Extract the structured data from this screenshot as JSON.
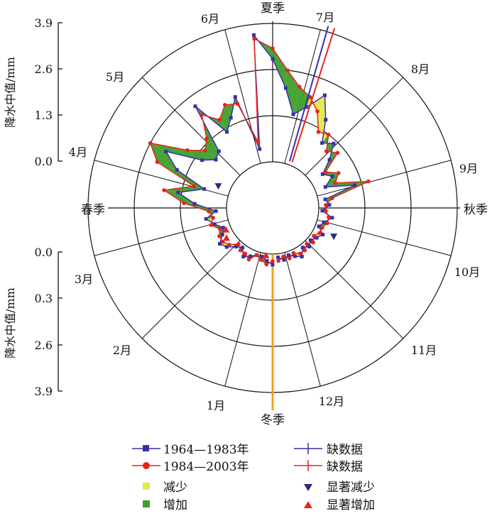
{
  "chart_data": {
    "type": "radar",
    "seasons": [
      "夏季",
      "秋季",
      "冬季",
      "春季"
    ],
    "months": [
      "1月",
      "2月",
      "3月",
      "4月",
      "5月",
      "6月",
      "7月",
      "8月",
      "9月",
      "10月",
      "11月",
      "12月"
    ],
    "y_axis_label": "降水中值/mm",
    "upper_ticks": [
      "3.9",
      "2.6",
      "1.3",
      "0.0"
    ],
    "lower_ticks": [
      "0.0",
      "0.3",
      "2.6",
      "3.9"
    ],
    "rlim": [
      0,
      3.9
    ],
    "series": [
      {
        "name": "1964—1983年",
        "color": "#3b2fa8",
        "values": [
          0.3,
          0.2,
          0.1,
          0.1,
          0.2,
          0.3,
          0.1,
          0.2,
          0.4,
          0.5,
          0.3,
          0.2,
          0.4,
          0.6,
          0.3,
          0.9,
          1.4,
          0.7,
          1.6,
          2.1,
          1.1,
          0.8,
          0.9,
          2.3,
          1.2,
          1.5,
          2.0,
          0.4,
          3.6,
          2.9,
          2.1,
          1.4,
          1.7,
          2.2,
          1.6,
          1.0,
          1.2,
          0.8,
          0.4,
          0.6,
          0.3,
          1.1,
          0.2,
          0.3,
          0.1,
          0.4,
          0.2,
          0.1,
          0.3,
          0.2,
          0.1,
          0.2,
          0.1,
          0.3,
          0.2,
          0.1,
          0.2,
          0.1
        ]
      },
      {
        "name": "1984—2003年",
        "color": "#e8241c",
        "values": [
          0.2,
          0.3,
          0.2,
          0.1,
          0.3,
          0.2,
          0.2,
          0.1,
          0.3,
          0.4,
          0.4,
          0.3,
          0.5,
          0.4,
          0.5,
          1.2,
          1.8,
          1.0,
          2.2,
          2.6,
          1.6,
          1.2,
          1.4,
          2.0,
          1.6,
          1.9,
          1.8,
          0.6,
          3.5,
          3.2,
          2.6,
          2.2,
          2.0,
          1.7,
          1.2,
          1.3,
          0.9,
          1.1,
          0.5,
          0.8,
          0.6,
          1.5,
          0.4,
          0.2,
          0.2,
          0.3,
          0.3,
          0.2,
          0.2,
          0.1,
          0.2,
          0.1,
          0.2,
          0.2,
          0.1,
          0.2,
          0.1,
          0.2
        ]
      }
    ],
    "legend": {
      "s1": "1964—1983年",
      "s2": "1984—2003年",
      "missing1": "缺数据",
      "missing2": "缺数据",
      "decrease": "减少",
      "increase": "增加",
      "sig_decrease": "显著减少",
      "sig_increase": "显著增加"
    },
    "colors": {
      "decrease": "#e4e84a",
      "increase": "#3f9e2c",
      "sig_decrease": "#2a2a7a",
      "sig_increase": "#e8241c",
      "winter_axis": "#f0a020"
    },
    "grid": true
  }
}
